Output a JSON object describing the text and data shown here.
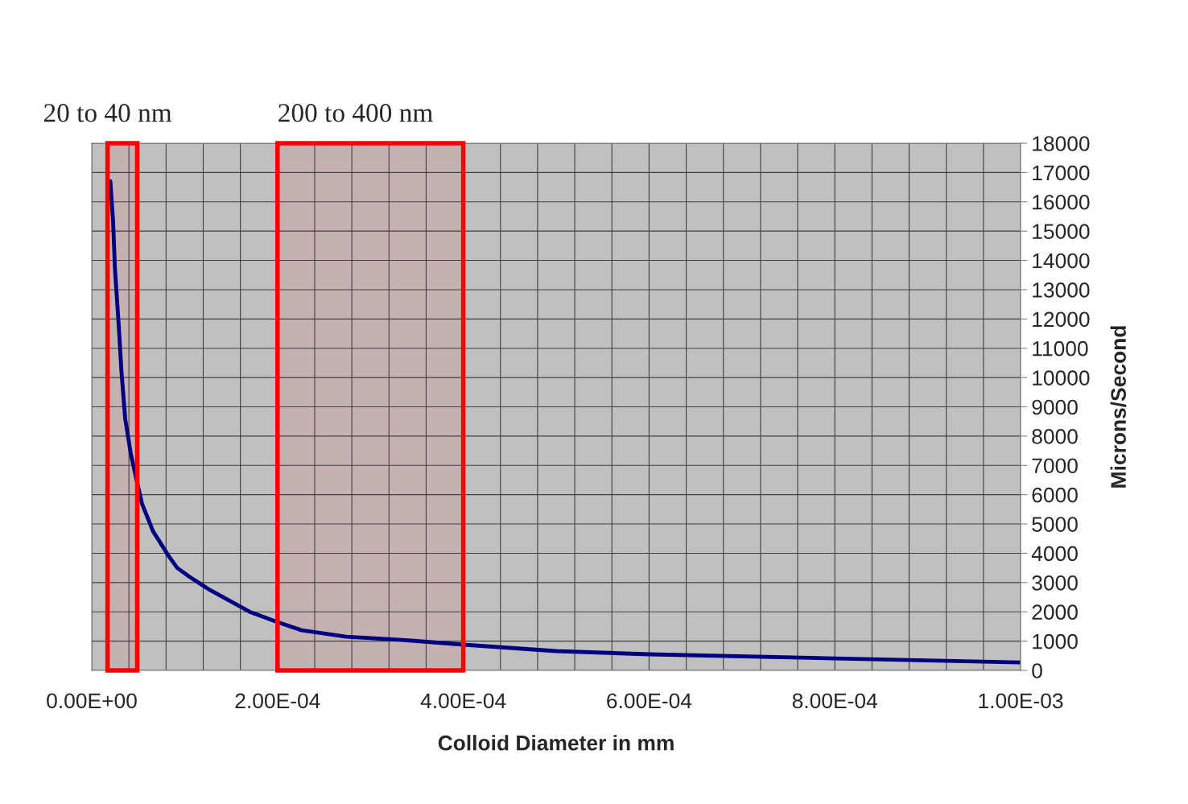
{
  "chart_data": {
    "type": "line",
    "xlabel": "Colloid Diameter in mm",
    "ylabel": "Microns/Second",
    "x": [
      2e-05,
      2.3e-05,
      2.5e-05,
      2.9e-05,
      3.2e-05,
      3.6e-05,
      4.2e-05,
      4.9e-05,
      5.4e-05,
      6.6e-05,
      8.3e-05,
      9.2e-05,
      0.000105,
      0.000127,
      0.00017,
      0.0002,
      0.000226,
      0.000274,
      0.000334,
      0.0004,
      0.0005,
      0.0006,
      0.0008,
      0.001
    ],
    "series": [
      {
        "color": "#000080",
        "values": [
          16700,
          15300,
          13700,
          11800,
          10200,
          8600,
          7400,
          6400,
          5700,
          4750,
          3900,
          3500,
          3200,
          2750,
          2000,
          1650,
          1370,
          1150,
          1040,
          880,
          660,
          550,
          410,
          270
        ]
      }
    ],
    "xlim": [
      0,
      0.001
    ],
    "ylim": [
      0,
      18000
    ],
    "xticks": [
      {
        "value": 0,
        "label": "0.00E+00"
      },
      {
        "value": 4e-05,
        "label": null
      },
      {
        "value": 8e-05,
        "label": null
      },
      {
        "value": 0.00012,
        "label": null
      },
      {
        "value": 0.00016,
        "label": null
      },
      {
        "value": 0.0002,
        "label": "2.00E-04"
      },
      {
        "value": 0.00024,
        "label": null
      },
      {
        "value": 0.00028,
        "label": null
      },
      {
        "value": 0.00032,
        "label": null
      },
      {
        "value": 0.00036,
        "label": null
      },
      {
        "value": 0.0004,
        "label": "4.00E-04"
      },
      {
        "value": 0.00044,
        "label": null
      },
      {
        "value": 0.00048,
        "label": null
      },
      {
        "value": 0.00052,
        "label": null
      },
      {
        "value": 0.00056,
        "label": null
      },
      {
        "value": 0.0006,
        "label": "6.00E-04"
      },
      {
        "value": 0.00064,
        "label": null
      },
      {
        "value": 0.00068,
        "label": null
      },
      {
        "value": 0.00072,
        "label": null
      },
      {
        "value": 0.00076,
        "label": null
      },
      {
        "value": 0.0008,
        "label": "8.00E-04"
      },
      {
        "value": 0.00084,
        "label": null
      },
      {
        "value": 0.00088,
        "label": null
      },
      {
        "value": 0.00092,
        "label": null
      },
      {
        "value": 0.00096,
        "label": null
      },
      {
        "value": 0.001,
        "label": "1.00E-03"
      }
    ],
    "yticks": [
      0,
      1000,
      2000,
      3000,
      4000,
      5000,
      6000,
      7000,
      8000,
      9000,
      10000,
      11000,
      12000,
      13000,
      14000,
      15000,
      16000,
      17000,
      18000
    ],
    "bands": [
      {
        "axis": "x",
        "from": 1.7e-05,
        "to": 4.9e-05,
        "label": "20 to 40 nm",
        "color": "#ff0000"
      },
      {
        "axis": "x",
        "from": 0.0002,
        "to": 0.0004,
        "label": "200 to 400 nm",
        "color": "#ff0000"
      }
    ],
    "grid": true,
    "legend": false,
    "marker": "none",
    "line_style": "solid"
  }
}
